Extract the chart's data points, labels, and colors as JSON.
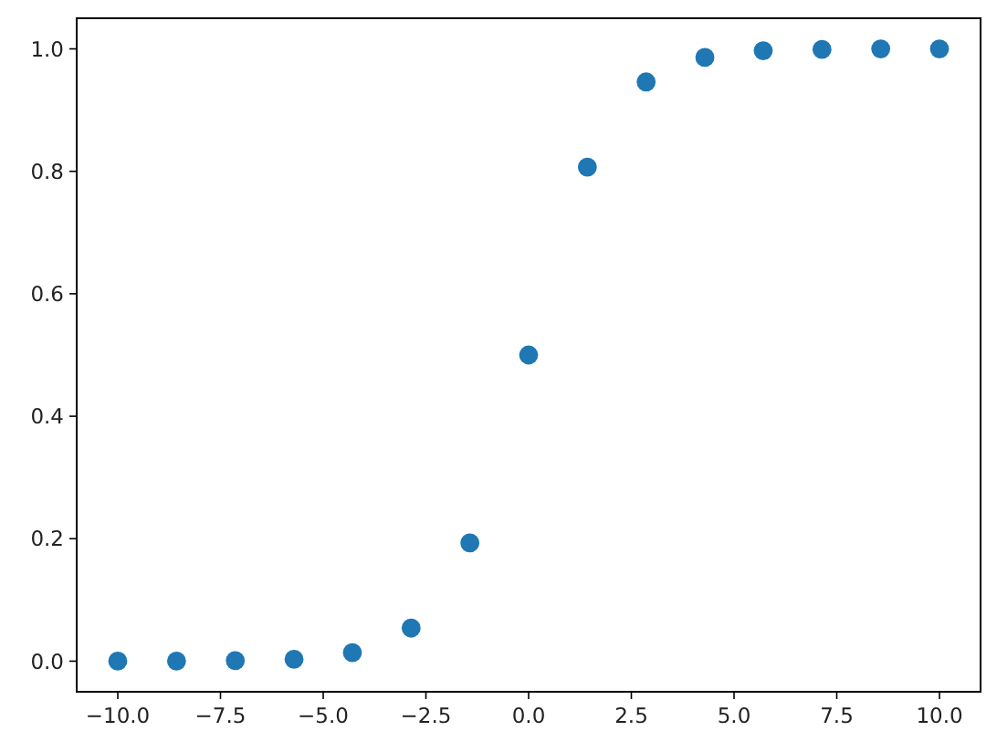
{
  "chart_data": {
    "type": "scatter",
    "x": [
      -10,
      -8.57,
      -7.14,
      -5.71,
      -4.29,
      -2.86,
      -1.43,
      0,
      1.43,
      2.86,
      4.29,
      5.71,
      7.14,
      8.57,
      10
    ],
    "series": [
      {
        "color": "#1f77b4",
        "values": [
          0.0,
          0.0,
          0.001,
          0.003,
          0.014,
          0.054,
          0.193,
          0.5,
          0.807,
          0.946,
          0.986,
          0.997,
          0.999,
          1.0,
          1.0
        ]
      }
    ],
    "xlim": [
      -11,
      11
    ],
    "xticks": [
      {
        "value": -10,
        "label": "−10.0"
      },
      {
        "value": -7.5,
        "label": "−7.5"
      },
      {
        "value": -5,
        "label": "−5.0"
      },
      {
        "value": -2.5,
        "label": "−2.5"
      },
      {
        "value": 0,
        "label": "0.0"
      },
      {
        "value": 2.5,
        "label": "2.5"
      },
      {
        "value": 5,
        "label": "5.0"
      },
      {
        "value": 7.5,
        "label": "7.5"
      },
      {
        "value": 10,
        "label": "10.0"
      }
    ],
    "ylim": [
      -0.05,
      1.05
    ],
    "yticks": [
      {
        "value": 0,
        "label": "0.0"
      },
      {
        "value": 0.2,
        "label": "0.2"
      },
      {
        "value": 0.4,
        "label": "0.4"
      },
      {
        "value": 0.6,
        "label": "0.6"
      },
      {
        "value": 0.8,
        "label": "0.8"
      },
      {
        "value": 1,
        "label": "1.0"
      }
    ],
    "marker": "circle",
    "grid": false
  }
}
